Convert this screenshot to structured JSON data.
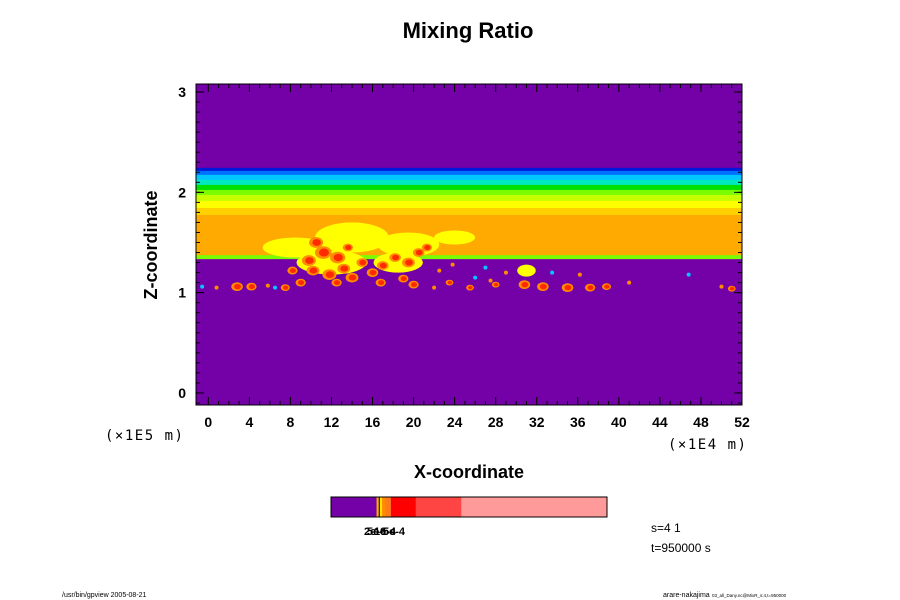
{
  "chart_data": {
    "type": "heatmap",
    "title": "Mixing Ratio",
    "xlabel": "X-coordinate",
    "ylabel": "Z-coordinate",
    "x_ticks": [
      "0",
      "4",
      "8",
      "12",
      "16",
      "20",
      "24",
      "28",
      "32",
      "36",
      "40",
      "44",
      "48",
      "52"
    ],
    "y_ticks": [
      "0",
      "1",
      "2",
      "3"
    ],
    "xlim": [
      -1.2,
      52
    ],
    "ylim": [
      -0.12,
      3.08
    ],
    "x_scale_label": "(×1E4 m)",
    "y_scale_label": "(×1E5 m)",
    "bands": [
      {
        "z0": -0.12,
        "z1": 1.34,
        "color": "#7400a8"
      },
      {
        "z0": 1.34,
        "z1": 1.38,
        "color": "#7cfc00"
      },
      {
        "z0": 1.38,
        "z1": 1.78,
        "color": "#ffaa00"
      },
      {
        "z0": 1.78,
        "z1": 1.85,
        "color": "#ffd000"
      },
      {
        "z0": 1.85,
        "z1": 1.92,
        "color": "#ffff00"
      },
      {
        "z0": 1.92,
        "z1": 1.98,
        "color": "#c8ff00"
      },
      {
        "z0": 1.98,
        "z1": 2.03,
        "color": "#7cfc00"
      },
      {
        "z0": 2.03,
        "z1": 2.08,
        "color": "#00e000"
      },
      {
        "z0": 2.08,
        "z1": 2.13,
        "color": "#00e8c0"
      },
      {
        "z0": 2.13,
        "z1": 2.18,
        "color": "#00c8ff"
      },
      {
        "z0": 2.18,
        "z1": 2.22,
        "color": "#0070ff"
      },
      {
        "z0": 2.22,
        "z1": 2.25,
        "color": "#0018d8"
      },
      {
        "z0": 2.25,
        "z1": 3.08,
        "color": "#7400a8"
      }
    ],
    "yellow_patches": [
      {
        "x": 8.5,
        "z": 1.45,
        "rx": 3.2,
        "rz": 0.1
      },
      {
        "x": 14.0,
        "z": 1.55,
        "rx": 3.6,
        "rz": 0.15
      },
      {
        "x": 19.5,
        "z": 1.48,
        "rx": 3.0,
        "rz": 0.12
      },
      {
        "x": 24.0,
        "z": 1.55,
        "rx": 2.0,
        "rz": 0.07
      },
      {
        "x": 12.0,
        "z": 1.3,
        "rx": 3.4,
        "rz": 0.12
      },
      {
        "x": 18.5,
        "z": 1.3,
        "rx": 2.4,
        "rz": 0.1
      },
      {
        "x": 31.0,
        "z": 1.22,
        "rx": 0.9,
        "rz": 0.06
      }
    ],
    "cells": [
      {
        "x": 10.5,
        "z": 1.5,
        "r": 0.55
      },
      {
        "x": 11.2,
        "z": 1.4,
        "r": 0.65
      },
      {
        "x": 9.8,
        "z": 1.32,
        "r": 0.55
      },
      {
        "x": 12.6,
        "z": 1.35,
        "r": 0.6
      },
      {
        "x": 13.2,
        "z": 1.24,
        "r": 0.5
      },
      {
        "x": 11.8,
        "z": 1.18,
        "r": 0.55
      },
      {
        "x": 10.2,
        "z": 1.22,
        "r": 0.5
      },
      {
        "x": 14.0,
        "z": 1.15,
        "r": 0.5
      },
      {
        "x": 15.0,
        "z": 1.3,
        "r": 0.45
      },
      {
        "x": 16.0,
        "z": 1.2,
        "r": 0.45
      },
      {
        "x": 17.0,
        "z": 1.27,
        "r": 0.45
      },
      {
        "x": 18.2,
        "z": 1.35,
        "r": 0.45
      },
      {
        "x": 19.5,
        "z": 1.3,
        "r": 0.5
      },
      {
        "x": 20.5,
        "z": 1.4,
        "r": 0.45
      },
      {
        "x": 21.3,
        "z": 1.45,
        "r": 0.4
      },
      {
        "x": 9.0,
        "z": 1.1,
        "r": 0.4
      },
      {
        "x": 8.2,
        "z": 1.22,
        "r": 0.4
      },
      {
        "x": 12.5,
        "z": 1.1,
        "r": 0.4
      },
      {
        "x": 13.6,
        "z": 1.45,
        "r": 0.4
      },
      {
        "x": 16.8,
        "z": 1.1,
        "r": 0.4
      },
      {
        "x": 19.0,
        "z": 1.14,
        "r": 0.4
      },
      {
        "x": 20.0,
        "z": 1.08,
        "r": 0.4
      },
      {
        "x": 2.8,
        "z": 1.06,
        "r": 0.45
      },
      {
        "x": 4.2,
        "z": 1.06,
        "r": 0.4
      },
      {
        "x": 7.5,
        "z": 1.05,
        "r": 0.35
      },
      {
        "x": 30.8,
        "z": 1.08,
        "r": 0.45
      },
      {
        "x": 32.6,
        "z": 1.06,
        "r": 0.45
      },
      {
        "x": 35.0,
        "z": 1.05,
        "r": 0.45
      },
      {
        "x": 37.2,
        "z": 1.05,
        "r": 0.4
      },
      {
        "x": 38.8,
        "z": 1.06,
        "r": 0.35
      },
      {
        "x": 51.0,
        "z": 1.04,
        "r": 0.3
      },
      {
        "x": 23.5,
        "z": 1.1,
        "r": 0.3
      },
      {
        "x": 25.5,
        "z": 1.05,
        "r": 0.3
      },
      {
        "x": 28.0,
        "z": 1.08,
        "r": 0.3
      }
    ],
    "specks": [
      {
        "x": -0.6,
        "z": 1.06
      },
      {
        "x": 0.8,
        "z": 1.05
      },
      {
        "x": 5.8,
        "z": 1.07
      },
      {
        "x": 6.5,
        "z": 1.05
      },
      {
        "x": 22.5,
        "z": 1.22
      },
      {
        "x": 23.8,
        "z": 1.28
      },
      {
        "x": 26.0,
        "z": 1.15
      },
      {
        "x": 27.5,
        "z": 1.12
      },
      {
        "x": 29.0,
        "z": 1.2
      },
      {
        "x": 33.5,
        "z": 1.2
      },
      {
        "x": 36.2,
        "z": 1.18
      },
      {
        "x": 41.0,
        "z": 1.1
      },
      {
        "x": 46.8,
        "z": 1.18
      },
      {
        "x": 50.0,
        "z": 1.06
      },
      {
        "x": 22.0,
        "z": 1.05
      },
      {
        "x": 27.0,
        "z": 1.25
      }
    ],
    "colorbar": {
      "segments": [
        {
          "color": "#7400a8",
          "width": 0.165
        },
        {
          "color": "#ffaa00",
          "width": 0.008
        },
        {
          "color": "#111111",
          "width": 0.004
        },
        {
          "color": "#ffe000",
          "width": 0.008
        },
        {
          "color": "#ff8c00",
          "width": 0.012
        },
        {
          "color": "#ff7a1a",
          "width": 0.02
        },
        {
          "color": "#ff0000",
          "width": 0.09
        },
        {
          "color": "#ff4444",
          "width": 0.165
        },
        {
          "color": "#ff9a9a",
          "width": 0.528
        }
      ],
      "labels": [
        "2e-6",
        "5e-5",
        "1e-4",
        "5e-4"
      ],
      "label_overlap_text": "3e-6e-4"
    },
    "info": {
      "s": "s=4 1",
      "t": "t=950000 s"
    }
  },
  "footer": {
    "left": "/usr/bin/gpview 2005-08-21",
    "right_main": "arare-nakajima",
    "right_small": "03_all_Dany.nc@MixR_s:4,t=950000"
  }
}
